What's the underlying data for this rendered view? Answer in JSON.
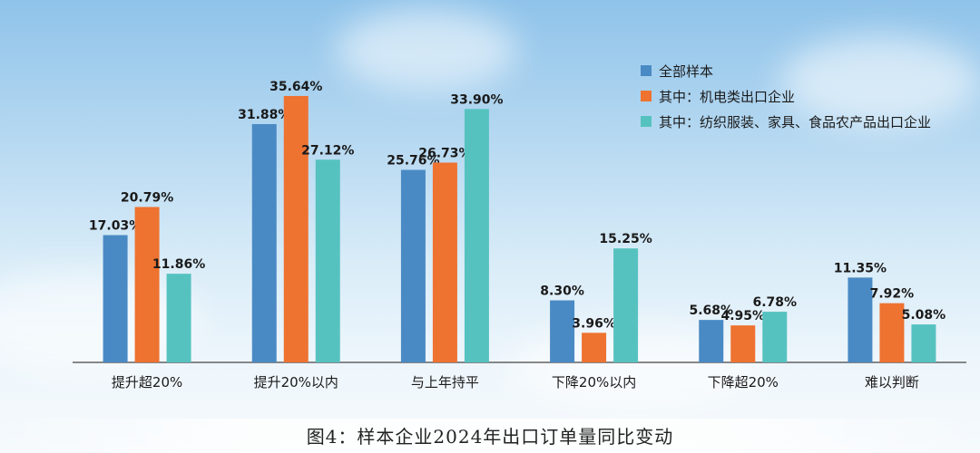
{
  "figure_caption": "图4：样本企业2024年出口订单量同比变动",
  "colors": {
    "all": "#4a8ac4",
    "electro": "#ee7230",
    "textile": "#56c2c0"
  },
  "chart_data": {
    "type": "bar",
    "title": "图4：样本企业2024年出口订单量同比变动",
    "categories": [
      "提升超20%",
      "提升20%以内",
      "与上年持平",
      "下降20%以内",
      "下降超20%",
      "难以判断"
    ],
    "series": [
      {
        "name": "全部样本",
        "values": [
          17.03,
          31.88,
          25.76,
          8.3,
          5.68,
          11.35
        ],
        "labels": [
          "17.03%",
          "31.88%",
          "25.76%",
          "8.30%",
          "5.68%",
          "11.35%"
        ]
      },
      {
        "name": "其中：机电类出口企业",
        "values": [
          20.79,
          35.64,
          26.73,
          3.96,
          4.95,
          7.92
        ],
        "labels": [
          "20.79%",
          "35.64%",
          "26.73%",
          "3.96%",
          "4.95%",
          "7.92%"
        ]
      },
      {
        "name": "其中：纺织服装、家具、食品农产品出口企业",
        "values": [
          11.86,
          27.12,
          33.9,
          15.25,
          6.78,
          5.08
        ],
        "labels": [
          "11.86%",
          "27.12%",
          "33.90%",
          "15.25%",
          "6.78%",
          "5.08%"
        ]
      }
    ],
    "ylim": [
      0,
      40
    ],
    "xlabel": "",
    "ylabel": "",
    "legend": "top-right",
    "grid": false
  }
}
